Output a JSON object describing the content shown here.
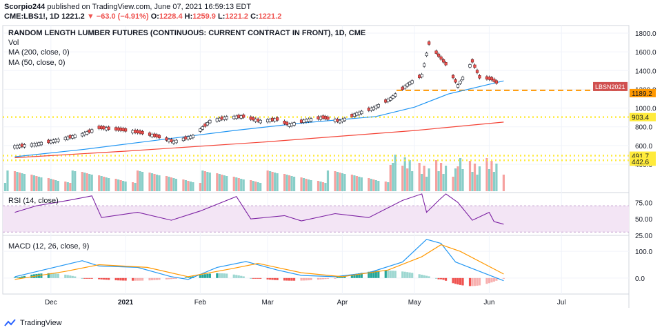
{
  "header": {
    "publisher": "Scorpio244",
    "publish_text": "published on TradingView.com, June 07, 2021 16:59:13 EDT",
    "symbol": "CME:LBS1!, 1D",
    "last": "1221.2",
    "change": "▼ −63.0 (−4.91%)",
    "open_label": "O:",
    "open": "1228.4",
    "high_label": "H:",
    "high": "1259.9",
    "low_label": "L:",
    "low": "1221.2",
    "close_label": "C:",
    "close": "1221.2"
  },
  "colors": {
    "up": "#26a69a",
    "down": "#ef5350",
    "ma200": "#f44336",
    "ma50": "#2196f3",
    "level": "#ffeb3b",
    "level_lbs": "#ff9800",
    "rsi_line": "#7b1fa2",
    "rsi_band": "#f3e5f5",
    "macd": "#2196f3",
    "signal": "#ff9800"
  },
  "chart_data": [
    {
      "type": "candlestick",
      "title": "RANDOM LENGTH LUMBER FUTURES (CONTINUOUS: CURRENT CONTRACT IN FRONT), 1D, CME",
      "legend": [
        "Vol",
        "MA (200, close, 0)",
        "MA (50, close, 0)"
      ],
      "y_ticks": [
        "1800.0",
        "1600.0",
        "1400.0",
        "1200.0",
        "1000.0",
        "800.0",
        "600.0",
        "400.0"
      ],
      "ylim": [
        400,
        1830
      ],
      "x_ticks": [
        "Dec",
        "2021",
        "Feb",
        "Mar",
        "Apr",
        "May",
        "Jun",
        "Jul"
      ],
      "price_labels": [
        "LBSN2021",
        "1189.2",
        "903.4",
        "491.7",
        "442.6"
      ],
      "levels": [
        {
          "name": "LBSN2021",
          "value": 1189.2
        },
        {
          "name": "upper",
          "value": 903.4
        },
        {
          "name": "lower1",
          "value": 491.7
        },
        {
          "name": "lower2",
          "value": 442.6
        }
      ],
      "close_points": [
        {
          "date": "2020-11-16",
          "value": 590
        },
        {
          "date": "2020-11-25",
          "value": 615
        },
        {
          "date": "2020-12-04",
          "value": 660
        },
        {
          "date": "2020-12-14",
          "value": 720
        },
        {
          "date": "2020-12-21",
          "value": 790
        },
        {
          "date": "2020-12-30",
          "value": 770
        },
        {
          "date": "2021-01-07",
          "value": 740
        },
        {
          "date": "2021-01-14",
          "value": 700
        },
        {
          "date": "2021-01-21",
          "value": 640
        },
        {
          "date": "2021-01-29",
          "value": 700
        },
        {
          "date": "2021-02-05",
          "value": 860
        },
        {
          "date": "2021-02-12",
          "value": 900
        },
        {
          "date": "2021-02-19",
          "value": 910
        },
        {
          "date": "2021-02-26",
          "value": 860
        },
        {
          "date": "2021-03-05",
          "value": 880
        },
        {
          "date": "2021-03-10",
          "value": 820
        },
        {
          "date": "2021-03-17",
          "value": 870
        },
        {
          "date": "2021-03-24",
          "value": 900
        },
        {
          "date": "2021-03-31",
          "value": 860
        },
        {
          "date": "2021-04-07",
          "value": 940
        },
        {
          "date": "2021-04-14",
          "value": 1000
        },
        {
          "date": "2021-04-21",
          "value": 1100
        },
        {
          "date": "2021-04-28",
          "value": 1250
        },
        {
          "date": "2021-05-04",
          "value": 1350
        },
        {
          "date": "2021-05-07",
          "value": 1690
        },
        {
          "date": "2021-05-11",
          "value": 1560
        },
        {
          "date": "2021-05-14",
          "value": 1470
        },
        {
          "date": "2021-05-19",
          "value": 1240
        },
        {
          "date": "2021-05-21",
          "value": 1320
        },
        {
          "date": "2021-05-25",
          "value": 1500
        },
        {
          "date": "2021-05-28",
          "value": 1330
        },
        {
          "date": "2021-06-02",
          "value": 1310
        },
        {
          "date": "2021-06-07",
          "value": 1221.2
        }
      ],
      "ma200": [
        {
          "date": "2020-11-16",
          "value": 470
        },
        {
          "date": "2021-01-01",
          "value": 540
        },
        {
          "date": "2021-03-01",
          "value": 640
        },
        {
          "date": "2021-05-01",
          "value": 760
        },
        {
          "date": "2021-06-07",
          "value": 850
        }
      ],
      "ma50": [
        {
          "date": "2020-11-16",
          "value": 480
        },
        {
          "date": "2020-12-15",
          "value": 560
        },
        {
          "date": "2021-01-15",
          "value": 660
        },
        {
          "date": "2021-02-15",
          "value": 760
        },
        {
          "date": "2021-03-15",
          "value": 840
        },
        {
          "date": "2021-04-15",
          "value": 910
        },
        {
          "date": "2021-05-01",
          "value": 1010
        },
        {
          "date": "2021-05-15",
          "value": 1150
        },
        {
          "date": "2021-06-07",
          "value": 1290
        }
      ]
    },
    {
      "type": "line",
      "title": "RSI (14, close)",
      "y_ticks": [
        "75.00",
        "50.00",
        "25.00"
      ],
      "ylim": [
        25,
        90
      ],
      "band": [
        30,
        70
      ],
      "series": [
        {
          "date": "2020-11-16",
          "value": 60
        },
        {
          "date": "2020-11-25",
          "value": 70
        },
        {
          "date": "2020-12-08",
          "value": 78
        },
        {
          "date": "2020-12-18",
          "value": 85
        },
        {
          "date": "2020-12-22",
          "value": 52
        },
        {
          "date": "2021-01-06",
          "value": 60
        },
        {
          "date": "2021-01-20",
          "value": 48
        },
        {
          "date": "2021-02-01",
          "value": 62
        },
        {
          "date": "2021-02-16",
          "value": 84
        },
        {
          "date": "2021-02-22",
          "value": 50
        },
        {
          "date": "2021-03-08",
          "value": 55
        },
        {
          "date": "2021-03-15",
          "value": 47
        },
        {
          "date": "2021-03-29",
          "value": 58
        },
        {
          "date": "2021-04-12",
          "value": 52
        },
        {
          "date": "2021-04-26",
          "value": 78
        },
        {
          "date": "2021-05-04",
          "value": 88
        },
        {
          "date": "2021-05-06",
          "value": 60
        },
        {
          "date": "2021-05-11",
          "value": 78
        },
        {
          "date": "2021-05-14",
          "value": 88
        },
        {
          "date": "2021-05-19",
          "value": 75
        },
        {
          "date": "2021-05-25",
          "value": 48
        },
        {
          "date": "2021-06-01",
          "value": 60
        },
        {
          "date": "2021-06-03",
          "value": 46
        },
        {
          "date": "2021-06-07",
          "value": 42
        }
      ]
    },
    {
      "type": "line",
      "title": "MACD (12, 26, close, 9)",
      "y_ticks": [
        "100.0",
        "0.0"
      ],
      "ylim": [
        -60,
        160
      ],
      "macd": [
        {
          "date": "2020-11-16",
          "value": 5
        },
        {
          "date": "2020-11-30",
          "value": 35
        },
        {
          "date": "2020-12-14",
          "value": 65
        },
        {
          "date": "2020-12-21",
          "value": 45
        },
        {
          "date": "2021-01-06",
          "value": 40
        },
        {
          "date": "2021-01-20",
          "value": 5
        },
        {
          "date": "2021-01-27",
          "value": -5
        },
        {
          "date": "2021-02-08",
          "value": 40
        },
        {
          "date": "2021-02-20",
          "value": 62
        },
        {
          "date": "2021-03-05",
          "value": 30
        },
        {
          "date": "2021-03-15",
          "value": 10
        },
        {
          "date": "2021-03-29",
          "value": 5
        },
        {
          "date": "2021-04-12",
          "value": 20
        },
        {
          "date": "2021-04-26",
          "value": 60
        },
        {
          "date": "2021-05-06",
          "value": 145
        },
        {
          "date": "2021-05-12",
          "value": 130
        },
        {
          "date": "2021-05-18",
          "value": 60
        },
        {
          "date": "2021-05-28",
          "value": 25
        },
        {
          "date": "2021-06-07",
          "value": -10
        }
      ],
      "signal": [
        {
          "date": "2020-11-16",
          "value": -5
        },
        {
          "date": "2020-12-07",
          "value": 25
        },
        {
          "date": "2020-12-21",
          "value": 50
        },
        {
          "date": "2021-01-10",
          "value": 40
        },
        {
          "date": "2021-01-27",
          "value": 5
        },
        {
          "date": "2021-02-14",
          "value": 35
        },
        {
          "date": "2021-02-25",
          "value": 55
        },
        {
          "date": "2021-03-15",
          "value": 20
        },
        {
          "date": "2021-04-01",
          "value": 5
        },
        {
          "date": "2021-04-20",
          "value": 30
        },
        {
          "date": "2021-05-04",
          "value": 80
        },
        {
          "date": "2021-05-12",
          "value": 125
        },
        {
          "date": "2021-05-20",
          "value": 100
        },
        {
          "date": "2021-06-07",
          "value": 15
        }
      ],
      "histogram_segments": [
        {
          "from": "2020-11-16",
          "to": "2020-12-14",
          "value": 18,
          "color": "up"
        },
        {
          "from": "2020-12-15",
          "to": "2021-01-25",
          "value": -10,
          "color": "down"
        },
        {
          "from": "2021-01-26",
          "to": "2021-02-22",
          "value": 18,
          "color": "up"
        },
        {
          "from": "2021-02-23",
          "to": "2021-03-29",
          "value": -10,
          "color": "down"
        },
        {
          "from": "2021-03-30",
          "to": "2021-05-10",
          "value": 28,
          "color": "up"
        },
        {
          "from": "2021-05-11",
          "to": "2021-06-07",
          "value": -30,
          "color": "down"
        }
      ]
    }
  ],
  "footer": {
    "brand": "TradingView"
  }
}
